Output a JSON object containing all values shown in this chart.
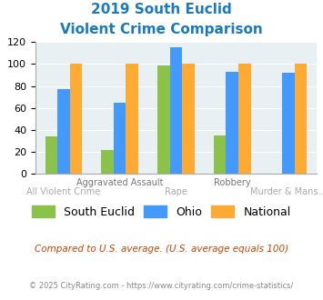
{
  "title_line1": "2019 South Euclid",
  "title_line2": "Violent Crime Comparison",
  "categories": [
    "All Violent Crime",
    "Aggravated Assault",
    "Rape",
    "Robbery",
    "Murder & Mans..."
  ],
  "series": {
    "South Euclid": [
      34,
      22,
      99,
      35,
      0
    ],
    "Ohio": [
      77,
      65,
      115,
      93,
      92
    ],
    "National": [
      100,
      100,
      100,
      100,
      100
    ]
  },
  "colors": {
    "South Euclid": "#8bc34a",
    "Ohio": "#4499ff",
    "National": "#ffaa33"
  },
  "ylim": [
    0,
    120
  ],
  "yticks": [
    0,
    20,
    40,
    60,
    80,
    100,
    120
  ],
  "top_labels": [
    "",
    "Aggravated Assault",
    "",
    "Robbery",
    ""
  ],
  "bot_labels": [
    "All Violent Crime",
    "",
    "Rape",
    "",
    "Murder & Mans..."
  ],
  "footnote1": "Compared to U.S. average. (U.S. average equals 100)",
  "footnote2": "© 2025 CityRating.com - https://www.cityrating.com/crime-statistics/",
  "bg_color": "#e8f0f4",
  "title_color": "#1a7abf",
  "footnote1_color": "#cc4400",
  "footnote2_color": "#888888"
}
